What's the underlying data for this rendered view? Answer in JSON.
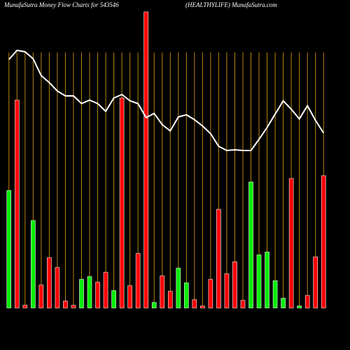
{
  "chart_data": {
    "type": "bar",
    "title": "MunafaSutra  Money Flow  Charts for 543546",
    "subtitle": "(HEALTHYLIFE) MunafaSutra.com",
    "categories": [
      null,
      null,
      null,
      null,
      null,
      null,
      null,
      null,
      null,
      null,
      null,
      null,
      null,
      null,
      null,
      null,
      null,
      null,
      null,
      null,
      null,
      null,
      null,
      null,
      null,
      null,
      null,
      null,
      null,
      null,
      null,
      null,
      null,
      null,
      null,
      null,
      null,
      null,
      null,
      null
    ],
    "values": [
      168,
      297,
      4,
      125,
      33,
      72,
      58,
      10,
      4,
      41,
      45,
      37,
      51,
      25,
      300,
      32,
      78,
      423,
      8,
      46,
      24,
      57,
      36,
      12,
      3,
      41,
      141,
      49,
      66,
      11,
      180,
      76,
      80,
      39,
      14,
      185,
      3,
      18,
      73,
      189
    ],
    "colors": [
      "#00ee00",
      "#ff0000",
      "#ff0000",
      "#00ee00",
      "#ff0000",
      "#ff0000",
      "#ff0000",
      "#ff0000",
      "#ff0000",
      "#00ee00",
      "#00ee00",
      "#ff0000",
      "#ff0000",
      "#00ee00",
      "#ff0000",
      "#ff0000",
      "#ff0000",
      "#ff0000",
      "#00ee00",
      "#ff0000",
      "#ff0000",
      "#00ee00",
      "#00ee00",
      "#ff0000",
      "#ff0000",
      "#ff0000",
      "#ff0000",
      "#ff0000",
      "#ff0000",
      "#ff0000",
      "#00ee00",
      "#00ee00",
      "#00ee00",
      "#00ee00",
      "#00ee00",
      "#ff0000",
      "#00ee00",
      "#ff0000",
      "#ff0000",
      "#ff0000"
    ],
    "line_values": [
      355,
      368,
      366,
      356,
      332,
      322,
      310,
      303,
      303,
      292,
      297,
      292,
      281,
      300,
      305,
      296,
      292,
      272,
      278,
      262,
      253,
      273,
      276,
      269,
      260,
      249,
      231,
      225,
      226,
      225,
      225,
      241,
      258,
      277,
      296,
      284,
      270,
      289,
      268,
      250
    ],
    "line_color": "#ffffff",
    "grid_color": "#b8860b",
    "ylim": [
      0,
      440
    ]
  }
}
